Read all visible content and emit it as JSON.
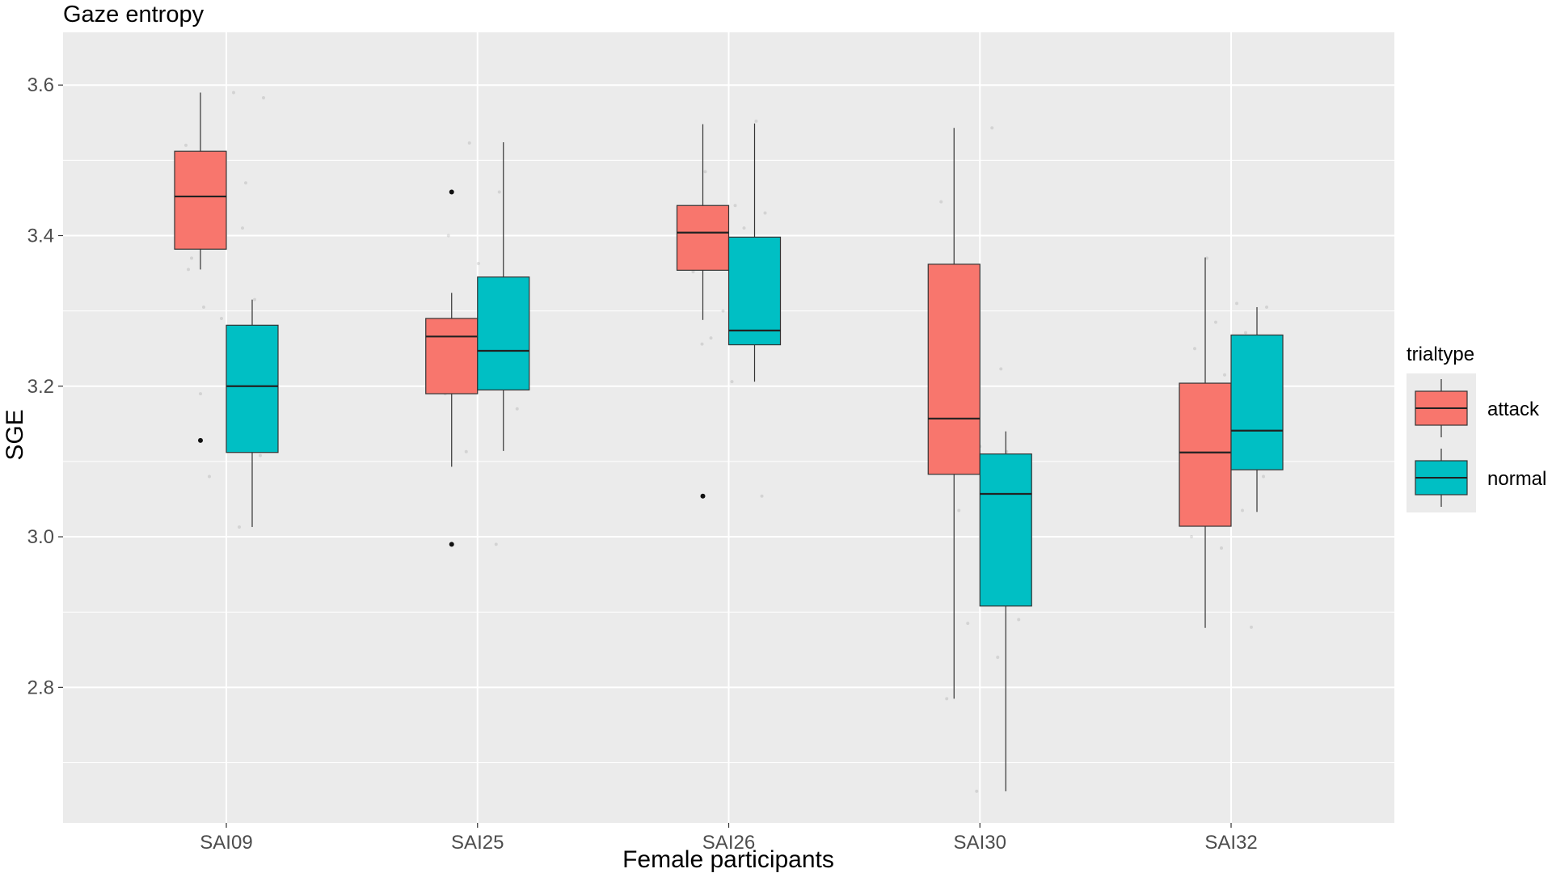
{
  "chart_data": {
    "type": "box",
    "title": "Gaze entropy",
    "xlabel": "Female participants",
    "ylabel": "SGE",
    "ylim": [
      2.62,
      3.67
    ],
    "yticks": [
      "2.8",
      "3.0",
      "3.2",
      "3.4",
      "3.6"
    ],
    "categories": [
      "SAI09",
      "SAI25",
      "SAI26",
      "SAI30",
      "SAI32"
    ],
    "legend": {
      "title": "trialtype",
      "position": "right"
    },
    "grid": true,
    "series": [
      {
        "name": "attack",
        "color": "#F8766D",
        "boxes": [
          {
            "category": "SAI09",
            "min": 3.355,
            "q1": 3.382,
            "median": 3.452,
            "q3": 3.512,
            "max": 3.59,
            "outliers": [
              3.128
            ]
          },
          {
            "category": "SAI25",
            "min": 3.093,
            "q1": 3.19,
            "median": 3.266,
            "q3": 3.29,
            "max": 3.324,
            "outliers": [
              3.458,
              2.99
            ]
          },
          {
            "category": "SAI26",
            "min": 3.288,
            "q1": 3.354,
            "median": 3.404,
            "q3": 3.44,
            "max": 3.548,
            "outliers": [
              3.054
            ]
          },
          {
            "category": "SAI30",
            "min": 2.785,
            "q1": 3.083,
            "median": 3.157,
            "q3": 3.362,
            "max": 3.543,
            "outliers": []
          },
          {
            "category": "SAI32",
            "min": 2.879,
            "q1": 3.014,
            "median": 3.112,
            "q3": 3.204,
            "max": 3.371,
            "outliers": []
          }
        ]
      },
      {
        "name": "normal",
        "color": "#00BFC4",
        "boxes": [
          {
            "category": "SAI09",
            "min": 3.013,
            "q1": 3.112,
            "median": 3.2,
            "q3": 3.281,
            "max": 3.315,
            "outliers": []
          },
          {
            "category": "SAI25",
            "min": 3.114,
            "q1": 3.195,
            "median": 3.247,
            "q3": 3.345,
            "max": 3.524,
            "outliers": []
          },
          {
            "category": "SAI26",
            "min": 3.206,
            "q1": 3.255,
            "median": 3.274,
            "q3": 3.398,
            "max": 3.549,
            "outliers": []
          },
          {
            "category": "SAI30",
            "min": 2.662,
            "q1": 2.908,
            "median": 3.057,
            "q3": 3.11,
            "max": 3.14,
            "outliers": []
          },
          {
            "category": "SAI32",
            "min": 3.033,
            "q1": 3.089,
            "median": 3.141,
            "q3": 3.268,
            "max": 3.305,
            "outliers": []
          }
        ]
      }
    ],
    "jitter_points": [
      [
        0,
        3.52
      ],
      [
        0,
        3.49
      ],
      [
        0,
        3.47
      ],
      [
        0,
        3.44
      ],
      [
        0,
        3.41
      ],
      [
        0,
        3.315
      ],
      [
        0,
        3.305
      ],
      [
        0,
        3.59
      ],
      [
        0,
        3.583
      ],
      [
        0,
        3.432
      ],
      [
        0,
        3.41
      ],
      [
        0,
        3.37
      ],
      [
        0,
        3.29
      ],
      [
        0,
        3.25
      ],
      [
        0,
        3.19
      ],
      [
        0,
        3.135
      ],
      [
        0,
        3.108
      ],
      [
        0,
        3.08
      ],
      [
        0,
        3.013
      ],
      [
        0,
        3.355
      ],
      [
        1,
        3.523
      ],
      [
        1,
        3.458
      ],
      [
        1,
        3.4
      ],
      [
        1,
        3.363
      ],
      [
        1,
        3.287
      ],
      [
        1,
        3.25
      ],
      [
        1,
        3.22
      ],
      [
        1,
        3.17
      ],
      [
        1,
        3.113
      ],
      [
        1,
        2.99
      ],
      [
        1,
        3.19
      ],
      [
        1,
        3.26
      ],
      [
        2,
        3.552
      ],
      [
        2,
        3.485
      ],
      [
        2,
        3.44
      ],
      [
        2,
        3.43
      ],
      [
        2,
        3.424
      ],
      [
        2,
        3.41
      ],
      [
        2,
        3.352
      ],
      [
        2,
        3.3
      ],
      [
        2,
        3.28
      ],
      [
        2,
        3.256
      ],
      [
        2,
        3.206
      ],
      [
        2,
        3.054
      ],
      [
        2,
        3.264
      ],
      [
        3,
        3.543
      ],
      [
        3,
        3.445
      ],
      [
        3,
        3.3
      ],
      [
        3,
        3.223
      ],
      [
        3,
        3.21
      ],
      [
        3,
        3.12
      ],
      [
        3,
        3.095
      ],
      [
        3,
        3.035
      ],
      [
        3,
        2.97
      ],
      [
        3,
        2.89
      ],
      [
        3,
        2.885
      ],
      [
        3,
        2.84
      ],
      [
        3,
        2.785
      ],
      [
        3,
        2.662
      ],
      [
        3,
        3.113
      ],
      [
        4,
        3.37
      ],
      [
        4,
        3.31
      ],
      [
        4,
        3.305
      ],
      [
        4,
        3.285
      ],
      [
        4,
        3.271
      ],
      [
        4,
        3.25
      ],
      [
        4,
        3.215
      ],
      [
        4,
        3.17
      ],
      [
        4,
        3.16
      ],
      [
        4,
        3.1
      ],
      [
        4,
        3.08
      ],
      [
        4,
        3.07
      ],
      [
        4,
        3.035
      ],
      [
        4,
        3.0
      ],
      [
        4,
        2.985
      ],
      [
        4,
        2.88
      ]
    ]
  }
}
